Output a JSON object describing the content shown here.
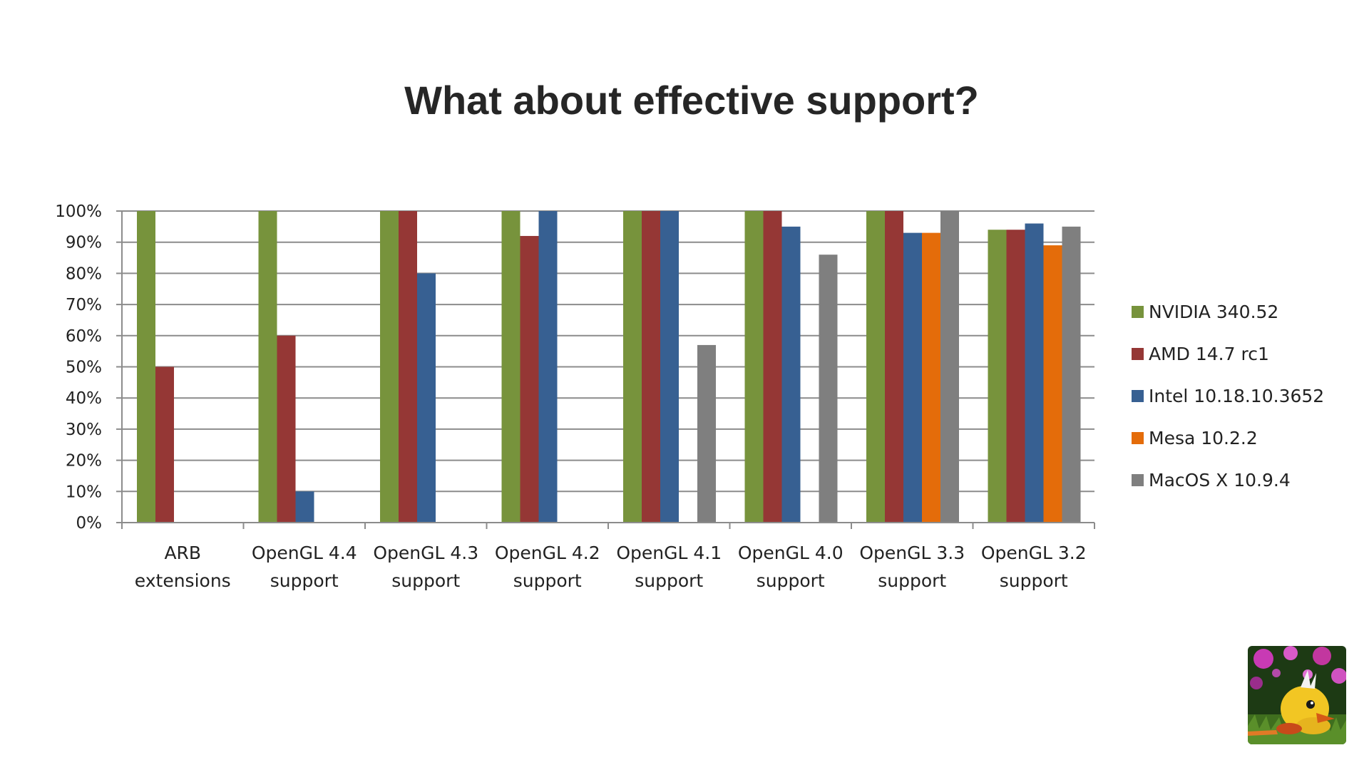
{
  "slide": {
    "title": "What about effective support?"
  },
  "chart_data": {
    "type": "bar",
    "title": "",
    "xlabel": "",
    "ylabel": "",
    "ylim": [
      0,
      100
    ],
    "y_unit": "%",
    "yticks": [
      "0%",
      "10%",
      "20%",
      "30%",
      "40%",
      "50%",
      "60%",
      "70%",
      "80%",
      "90%",
      "100%"
    ],
    "grid": true,
    "legend_position": "right",
    "categories": [
      [
        "ARB",
        "extensions"
      ],
      [
        "OpenGL 4.4",
        "support"
      ],
      [
        "OpenGL 4.3",
        "support"
      ],
      [
        "OpenGL 4.2",
        "support"
      ],
      [
        "OpenGL 4.1",
        "support"
      ],
      [
        "OpenGL 4.0",
        "support"
      ],
      [
        "OpenGL 3.3",
        "support"
      ],
      [
        "OpenGL 3.2",
        "support"
      ]
    ],
    "series": [
      {
        "name": "NVIDIA 340.52",
        "color": "#77933c",
        "values": [
          100,
          100,
          100,
          100,
          100,
          100,
          100,
          94
        ]
      },
      {
        "name": "AMD 14.7 rc1",
        "color": "#953735",
        "values": [
          50,
          60,
          100,
          92,
          100,
          100,
          100,
          94
        ]
      },
      {
        "name": "Intel 10.18.10.3652",
        "color": "#376092",
        "values": [
          0,
          10,
          80,
          100,
          100,
          95,
          93,
          96
        ]
      },
      {
        "name": "Mesa 10.2.2",
        "color": "#e46c0a",
        "values": [
          0,
          0,
          0,
          0,
          0,
          0,
          93,
          89
        ]
      },
      {
        "name": "MacOS X 10.9.4",
        "color": "#7f7f7f",
        "values": [
          0,
          0,
          0,
          0,
          57,
          86,
          100,
          95
        ]
      }
    ]
  },
  "decorations": {
    "mascot_icon": "duck-mascot-icon"
  }
}
